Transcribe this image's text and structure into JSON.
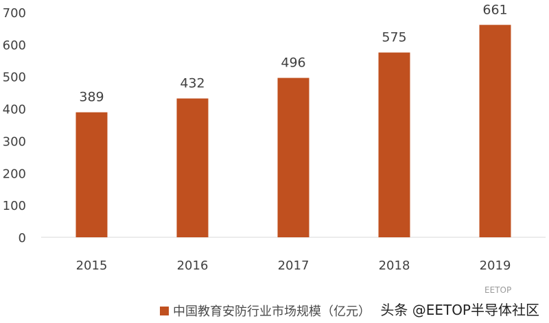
{
  "chart_data": {
    "type": "bar",
    "categories": [
      "2015",
      "2016",
      "2017",
      "2018",
      "2019"
    ],
    "series": [
      {
        "name": "中国教育安防行业市场规模（亿元）",
        "values": [
          389,
          432,
          496,
          575,
          661
        ],
        "color": "#c0501f"
      }
    ],
    "ylim": [
      0,
      700
    ],
    "yticks": [
      0,
      100,
      200,
      300,
      400,
      500,
      600,
      700
    ],
    "legend_position": "bottom",
    "grid": false
  },
  "watermark": {
    "text": "头条 @EETOP半导体社区",
    "small_text": "EETOP"
  }
}
